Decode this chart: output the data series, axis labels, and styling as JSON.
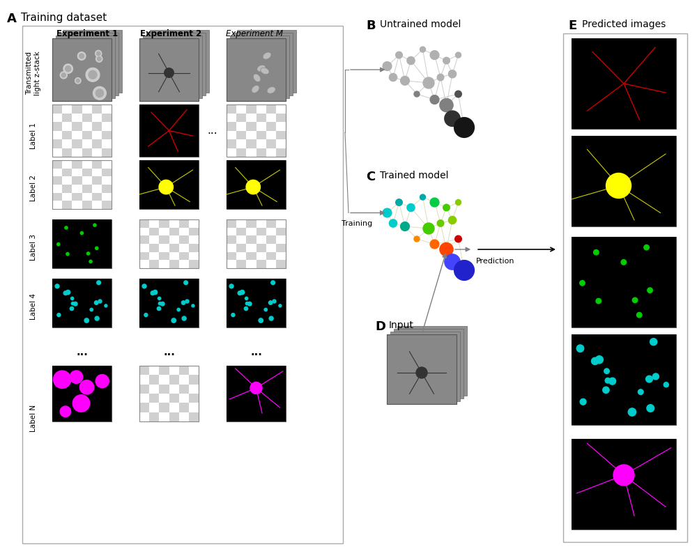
{
  "fig_width": 10.0,
  "fig_height": 8.01,
  "bg_color": "#ffffff",
  "panel_A_label": "A",
  "panel_A_title": "Training dataset",
  "panel_B_label": "B",
  "panel_B_title": "Untrained model",
  "panel_C_label": "C",
  "panel_C_title": "Trained model",
  "panel_D_label": "D",
  "panel_D_title": "Input",
  "panel_E_label": "E",
  "panel_E_title": "Predicted images",
  "row_labels": [
    "Transmitted\nlight z-stack",
    "Label 1",
    "Label 2",
    "Label 3",
    "Label 4",
    "",
    "Label N"
  ],
  "col_labels": [
    "Experiment 1",
    "Experiment 2",
    "Experiment M"
  ],
  "arrow_training_label": "Training",
  "arrow_prediction_label": "Prediction"
}
